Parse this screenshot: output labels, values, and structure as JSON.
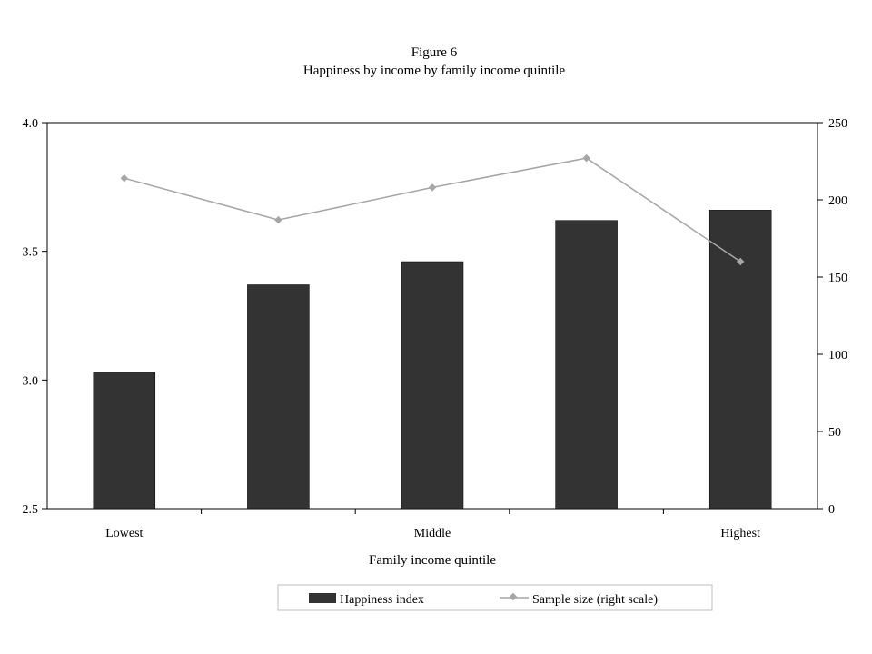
{
  "chart_data": {
    "type": "bar",
    "title": "Figure 6",
    "subtitle": "Happiness by income by family income quintile",
    "xlabel": "Family income quintile",
    "ylabel": "",
    "y2label": "",
    "categories": [
      "Lowest",
      "",
      "Middle",
      "",
      "Highest"
    ],
    "ylim": [
      2.5,
      4.0
    ],
    "y2lim": [
      0,
      250
    ],
    "yticks": [
      "2.5",
      "3.0",
      "3.5",
      "4.0"
    ],
    "y2ticks": [
      "0",
      "50",
      "100",
      "150",
      "200",
      "250"
    ],
    "series": [
      {
        "name": "Happiness index",
        "type": "bar",
        "axis": "left",
        "values": [
          3.03,
          3.37,
          3.46,
          3.62,
          3.66
        ]
      },
      {
        "name": "Sample size (right scale)",
        "type": "line",
        "axis": "right",
        "values": [
          214,
          187,
          208,
          227,
          160
        ]
      }
    ],
    "grid": false,
    "legend": "bottom",
    "colors": {
      "bar": "#333333",
      "line": "#a6a6a6",
      "axis": "#000000"
    }
  }
}
